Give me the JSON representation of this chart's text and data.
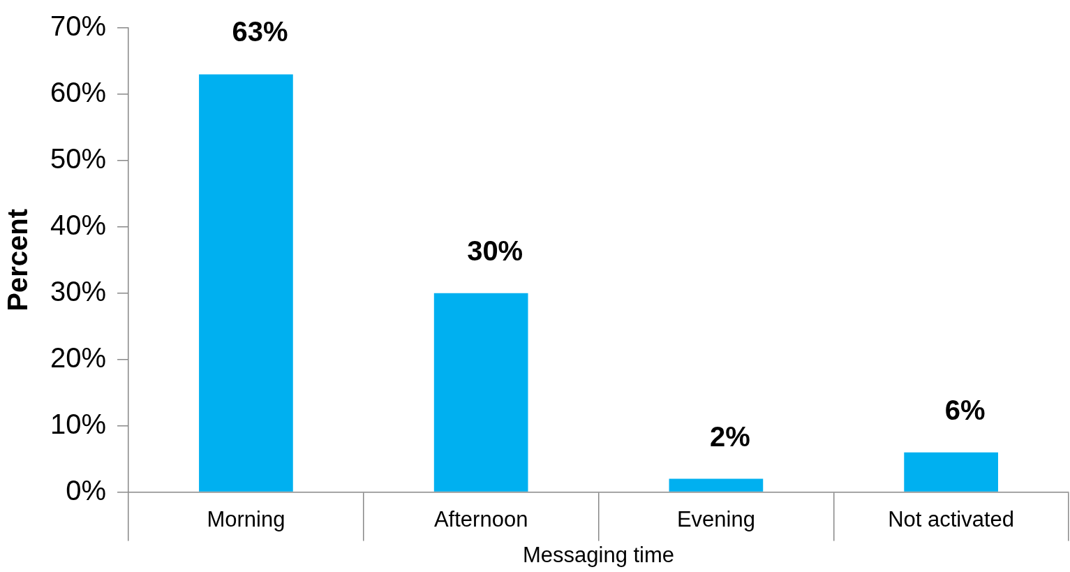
{
  "chart_data": {
    "type": "bar",
    "xlabel": "Messaging time",
    "ylabel": "Percent",
    "categories": [
      "Morning",
      "Afternoon",
      "Evening",
      "Not activated"
    ],
    "values": [
      63,
      30,
      2,
      6
    ],
    "value_labels": [
      "63%",
      "30%",
      "2%",
      "6%"
    ],
    "color": "#00b0f0",
    "ylim": [
      0,
      70
    ],
    "yticks": [
      {
        "value": 0,
        "label": "0%"
      },
      {
        "value": 10,
        "label": "10%"
      },
      {
        "value": 20,
        "label": "20%"
      },
      {
        "value": 30,
        "label": "30%"
      },
      {
        "value": 40,
        "label": "40%"
      },
      {
        "value": 50,
        "label": "50%"
      },
      {
        "value": 60,
        "label": "60%"
      },
      {
        "value": 70,
        "label": "70%"
      }
    ],
    "grid": false,
    "legend": false
  }
}
